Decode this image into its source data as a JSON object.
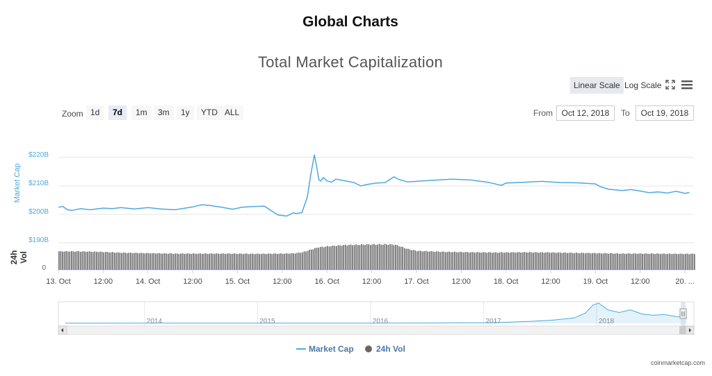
{
  "page": {
    "title": "Global Charts"
  },
  "chart": {
    "title": "Total Market Capitalization",
    "scale_buttons": {
      "linear": "Linear Scale",
      "log": "Log Scale"
    },
    "zoom_label": "Zoom",
    "zoom_buttons": [
      "1d",
      "7d",
      "1m",
      "3m",
      "1y",
      "YTD",
      "ALL"
    ],
    "zoom_active": "7d",
    "range": {
      "from_label": "From",
      "from_value": "Oct 12, 2018",
      "to_label": "To",
      "to_value": "Oct 19, 2018"
    },
    "credit": "coinmarketcap.com"
  },
  "chart_data": {
    "type": "line",
    "title": "Total Market Capitalization",
    "colors": {
      "market_cap": "#4aa9e0",
      "volume": "#666666"
    },
    "y_axis": {
      "label": "Market Cap",
      "ticks": [
        {
          "value": 220,
          "label": "$220B"
        },
        {
          "value": 210,
          "label": "$210B"
        },
        {
          "value": 200,
          "label": "$200B"
        },
        {
          "value": 190,
          "label": "$190B"
        }
      ],
      "range": [
        190,
        224
      ]
    },
    "volume_axis": {
      "label": [
        "24h",
        "Vol"
      ],
      "ticks": [
        {
          "value": 0,
          "label": "0"
        }
      ]
    },
    "x_axis": {
      "range": [
        0,
        7.1
      ],
      "ticks": [
        {
          "pos": 0,
          "label": "13. Oct"
        },
        {
          "pos": 0.5,
          "label": "12:00"
        },
        {
          "pos": 1,
          "label": "14. Oct"
        },
        {
          "pos": 1.5,
          "label": "12:00"
        },
        {
          "pos": 2,
          "label": "15. Oct"
        },
        {
          "pos": 2.5,
          "label": "12:00"
        },
        {
          "pos": 3,
          "label": "16. Oct"
        },
        {
          "pos": 3.5,
          "label": "12:00"
        },
        {
          "pos": 4,
          "label": "17. Oct"
        },
        {
          "pos": 4.5,
          "label": "12:00"
        },
        {
          "pos": 5,
          "label": "18. Oct"
        },
        {
          "pos": 5.5,
          "label": "12:00"
        },
        {
          "pos": 6,
          "label": "19. Oct"
        },
        {
          "pos": 6.5,
          "label": "12:00"
        },
        {
          "pos": 7,
          "label": "20. ..."
        }
      ]
    },
    "series": [
      {
        "name": "Market Cap",
        "x": [
          0,
          0.05,
          0.1,
          0.15,
          0.25,
          0.35,
          0.5,
          0.6,
          0.7,
          0.85,
          1.0,
          1.15,
          1.3,
          1.5,
          1.6,
          1.7,
          1.8,
          1.95,
          2.05,
          2.15,
          2.3,
          2.45,
          2.55,
          2.62,
          2.66,
          2.72,
          2.78,
          2.82,
          2.86,
          2.89,
          2.91,
          2.93,
          2.96,
          3.0,
          3.05,
          3.1,
          3.2,
          3.3,
          3.38,
          3.45,
          3.55,
          3.65,
          3.75,
          3.8,
          3.9,
          4.0,
          4.2,
          4.4,
          4.6,
          4.8,
          4.95,
          5.0,
          5.2,
          5.4,
          5.6,
          5.8,
          6.0,
          6.05,
          6.15,
          6.3,
          6.4,
          6.5,
          6.6,
          6.7,
          6.8,
          6.9,
          7.0,
          7.05
        ],
        "values": [
          202.5,
          202.8,
          201.6,
          201.4,
          202.0,
          201.6,
          202.2,
          202.0,
          202.4,
          201.9,
          202.4,
          201.9,
          201.6,
          202.6,
          203.4,
          203.1,
          202.6,
          201.8,
          202.5,
          202.7,
          202.9,
          199.8,
          199.4,
          200.5,
          200.3,
          200.6,
          206.0,
          214.0,
          221.0,
          216.0,
          212.2,
          211.7,
          212.9,
          211.8,
          211.3,
          212.4,
          211.8,
          211.2,
          210.0,
          210.5,
          211.0,
          211.2,
          213.2,
          212.3,
          211.4,
          211.6,
          212.0,
          212.4,
          212.1,
          211.3,
          210.2,
          211.0,
          211.3,
          211.6,
          211.2,
          211.1,
          210.7,
          209.8,
          208.8,
          208.4,
          208.7,
          208.2,
          207.6,
          207.9,
          207.5,
          208.1,
          207.4,
          207.7
        ]
      },
      {
        "name": "24h Vol",
        "x": [
          0,
          0.2,
          0.45,
          0.7,
          1.0,
          1.3,
          1.6,
          1.9,
          2.2,
          2.5,
          2.62,
          2.72,
          2.8,
          2.9,
          3.05,
          3.2,
          3.4,
          3.55,
          3.7,
          3.75,
          3.8,
          3.9,
          4.0,
          4.3,
          4.6,
          4.9,
          5.2,
          5.5,
          5.8,
          6.0,
          6.3,
          6.6,
          6.9,
          7.1
        ],
        "values": [
          0.82,
          0.82,
          0.8,
          0.76,
          0.74,
          0.72,
          0.72,
          0.72,
          0.71,
          0.72,
          0.73,
          0.78,
          0.88,
          1.0,
          1.06,
          1.1,
          1.12,
          1.13,
          1.13,
          1.12,
          1.06,
          0.92,
          0.84,
          0.8,
          0.78,
          0.77,
          0.78,
          0.77,
          0.75,
          0.74,
          0.72,
          0.72,
          0.71,
          0.71
        ]
      }
    ],
    "navigator": {
      "labels": [
        "2014",
        "2015",
        "2016",
        "2017",
        "2018"
      ],
      "series": {
        "x": [
          2013.3,
          2014.0,
          2014.5,
          2015.0,
          2015.5,
          2016.0,
          2016.5,
          2017.0,
          2017.2,
          2017.4,
          2017.6,
          2017.8,
          2017.9,
          2017.97,
          2018.02,
          2018.1,
          2018.2,
          2018.3,
          2018.4,
          2018.5,
          2018.6,
          2018.7,
          2018.8
        ],
        "values": [
          0.02,
          0.06,
          0.05,
          0.04,
          0.05,
          0.06,
          0.09,
          0.14,
          0.3,
          0.55,
          0.9,
          1.6,
          3.0,
          5.5,
          6.0,
          4.0,
          3.2,
          4.0,
          2.8,
          2.4,
          2.6,
          2.0,
          1.9
        ]
      }
    },
    "legend": [
      {
        "name": "Market Cap",
        "symbol": "line"
      },
      {
        "name": "24h Vol",
        "symbol": "circle"
      }
    ]
  }
}
